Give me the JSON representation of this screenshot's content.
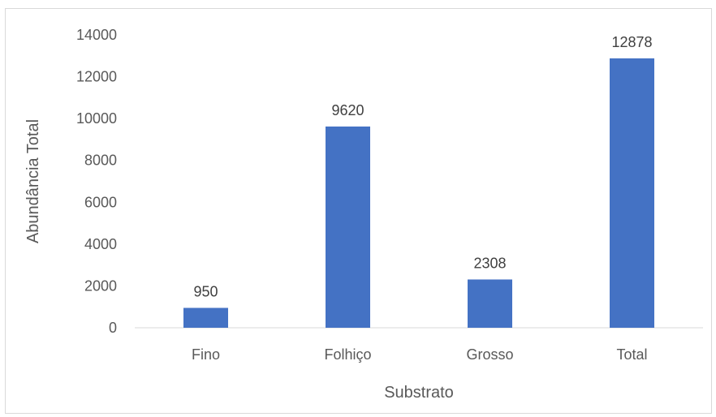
{
  "chart_data": {
    "type": "bar",
    "categories": [
      "Fino",
      "Folhiço",
      "Grosso",
      "Total"
    ],
    "values": [
      950,
      9620,
      2308,
      12878
    ],
    "data_labels": [
      "950",
      "9620",
      "2308",
      "12878"
    ],
    "xlabel": "Substrato",
    "ylabel": "Abundância Total",
    "ylim": [
      0,
      14000
    ],
    "yticks": [
      0,
      2000,
      4000,
      6000,
      8000,
      10000,
      12000,
      14000
    ],
    "bar_color": "#4472C4",
    "grid": false,
    "legend": "none"
  }
}
